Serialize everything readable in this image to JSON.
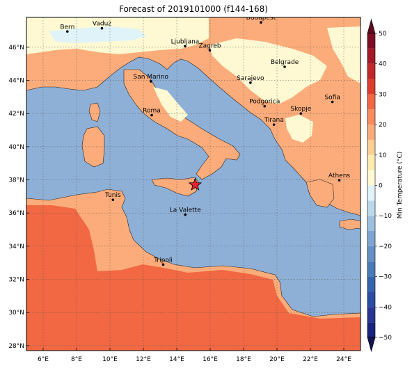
{
  "title": "Forecast of 2019101000 (f144-168)",
  "map": {
    "lon_range": [
      5,
      25
    ],
    "lat_range": [
      27.7,
      47.8
    ],
    "lon_ticks": [
      "6°E",
      "8°E",
      "10°E",
      "12°E",
      "14°E",
      "16°E",
      "18°E",
      "20°E",
      "22°E",
      "24°E"
    ],
    "lat_ticks": [
      "28°N",
      "30°N",
      "32°N",
      "34°N",
      "36°N",
      "38°N",
      "40°N",
      "42°N",
      "44°N",
      "46°N"
    ],
    "grid": true,
    "sea_color": "#8fb0d6",
    "cities": [
      {
        "name": "Bern",
        "lon": 7.45,
        "lat": 46.95
      },
      {
        "name": "Vaduz",
        "lon": 9.52,
        "lat": 47.14
      },
      {
        "name": "Budapest",
        "lon": 19.04,
        "lat": 47.5
      },
      {
        "name": "Ljubljana",
        "lon": 14.5,
        "lat": 46.06
      },
      {
        "name": "Zagreb",
        "lon": 15.98,
        "lat": 45.81
      },
      {
        "name": "Belgrade",
        "lon": 20.46,
        "lat": 44.82
      },
      {
        "name": "San Marino",
        "lon": 12.45,
        "lat": 43.94
      },
      {
        "name": "Sarajevo",
        "lon": 18.41,
        "lat": 43.86
      },
      {
        "name": "Sofia",
        "lon": 23.32,
        "lat": 42.7
      },
      {
        "name": "Podgorica",
        "lon": 19.26,
        "lat": 42.44
      },
      {
        "name": "Skopje",
        "lon": 21.43,
        "lat": 42.0
      },
      {
        "name": "Roma",
        "lon": 12.5,
        "lat": 41.9
      },
      {
        "name": "Tirana",
        "lon": 19.82,
        "lat": 41.33
      },
      {
        "name": "Athens",
        "lon": 23.73,
        "lat": 37.98
      },
      {
        "name": "Tunis",
        "lon": 10.18,
        "lat": 36.8
      },
      {
        "name": "La Valette",
        "lon": 14.51,
        "lat": 35.9
      },
      {
        "name": "Tripoli",
        "lon": 13.19,
        "lat": 32.89
      }
    ],
    "marker": {
      "symbol": "star",
      "lon": 15.1,
      "lat": 37.7,
      "color": "#e8222a"
    }
  },
  "colorbar": {
    "label": "Min Temperature (°C)",
    "tick_labels": [
      "−50",
      "−40",
      "−30",
      "−20",
      "−10",
      "0",
      "10",
      "20",
      "30",
      "40",
      "50"
    ],
    "bands": [
      {
        "from": -50,
        "to": -45,
        "color": "#1a237e"
      },
      {
        "from": -45,
        "to": -40,
        "color": "#283593"
      },
      {
        "from": -40,
        "to": -35,
        "color": "#2c4da3"
      },
      {
        "from": -35,
        "to": -30,
        "color": "#3564ae"
      },
      {
        "from": -30,
        "to": -25,
        "color": "#4a7ab8"
      },
      {
        "from": -25,
        "to": -20,
        "color": "#6490c4"
      },
      {
        "from": -20,
        "to": -15,
        "color": "#7ea4cf"
      },
      {
        "from": -15,
        "to": -10,
        "color": "#9ebfde"
      },
      {
        "from": -10,
        "to": -5,
        "color": "#bcd9ec"
      },
      {
        "from": -5,
        "to": 0,
        "color": "#e0f3f8"
      },
      {
        "from": 0,
        "to": 5,
        "color": "#fef9d3"
      },
      {
        "from": 5,
        "to": 10,
        "color": "#fdebb0"
      },
      {
        "from": 10,
        "to": 15,
        "color": "#fdcf94"
      },
      {
        "from": 15,
        "to": 20,
        "color": "#fcac7a"
      },
      {
        "from": 20,
        "to": 25,
        "color": "#f88c5c"
      },
      {
        "from": 25,
        "to": 30,
        "color": "#f16843"
      },
      {
        "from": 30,
        "to": 35,
        "color": "#dc3d2d"
      },
      {
        "from": 35,
        "to": 40,
        "color": "#c2282b"
      },
      {
        "from": 40,
        "to": 45,
        "color": "#a41827"
      },
      {
        "from": 45,
        "to": 50,
        "color": "#7f0c25"
      }
    ],
    "extend_low_color": "#0f1450",
    "extend_high_color": "#5e0a1f"
  }
}
